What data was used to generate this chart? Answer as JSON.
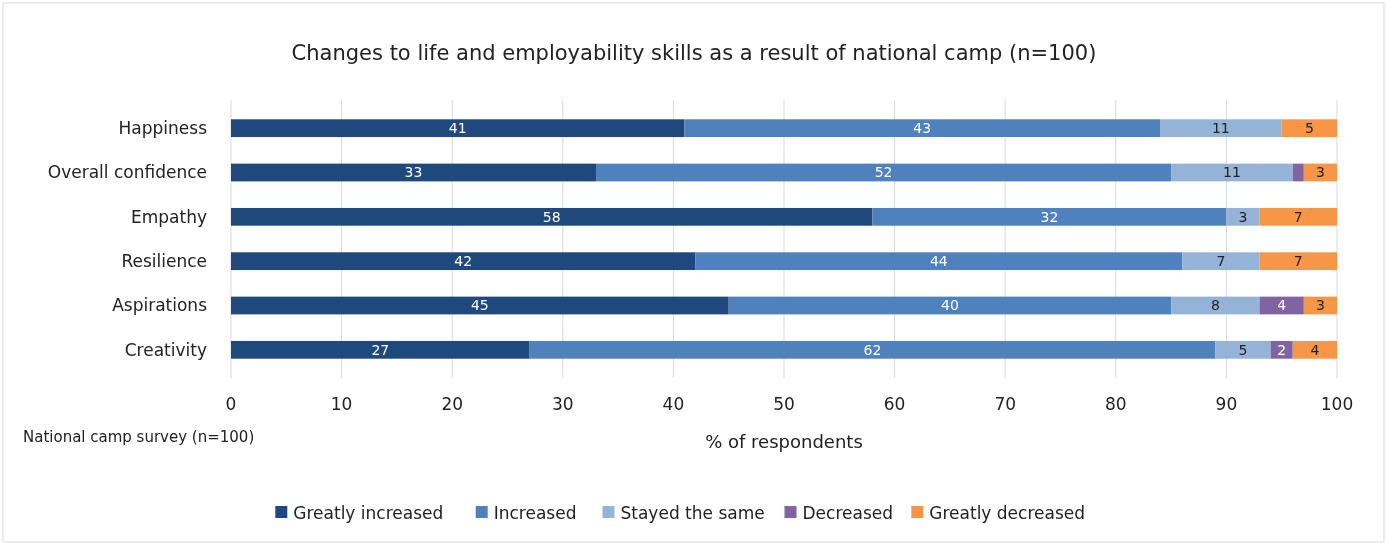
{
  "chart_data": {
    "type": "bar",
    "orientation": "horizontal",
    "stacked": true,
    "title": "Changes to life and employability skills as a result of national camp (n=100)",
    "xlabel": "% of respondents",
    "annotations": [
      "National camp survey (n=100)"
    ],
    "categories": [
      "Happiness",
      "Overall confidence",
      "Empathy",
      "Resilience",
      "Aspirations",
      "Creativity"
    ],
    "xlim": [
      0,
      100
    ],
    "xticks": [
      0,
      10,
      20,
      30,
      40,
      50,
      60,
      70,
      80,
      90,
      100
    ],
    "grid": "x",
    "legend": "bottom",
    "series": [
      {
        "name": "Greatly increased",
        "color": "#1f497d",
        "values": [
          41,
          33,
          58,
          42,
          45,
          27
        ],
        "value_labels": [
          "41",
          "33",
          "58",
          "42",
          "45",
          "27"
        ]
      },
      {
        "name": "Increased",
        "color": "#4f81bd",
        "values": [
          43,
          52,
          32,
          44,
          40,
          62
        ],
        "value_labels": [
          "43",
          "52",
          "32",
          "44",
          "40",
          "62"
        ]
      },
      {
        "name": "Stayed the same",
        "color": "#95b3d7",
        "values": [
          11,
          11,
          3,
          7,
          8,
          5
        ],
        "value_labels": [
          "11",
          "11",
          "3",
          "7",
          "8",
          "5"
        ]
      },
      {
        "name": "Decreased",
        "color": "#8064a2",
        "values": [
          0,
          1,
          0,
          0,
          4,
          2
        ],
        "value_labels": [
          null,
          null,
          null,
          null,
          "4",
          "2"
        ]
      },
      {
        "name": "Greatly decreased",
        "color": "#f79646",
        "values": [
          5,
          3,
          7,
          7,
          3,
          4
        ],
        "value_labels": [
          "5",
          "3",
          "7",
          "7",
          "3",
          "4"
        ]
      }
    ]
  }
}
